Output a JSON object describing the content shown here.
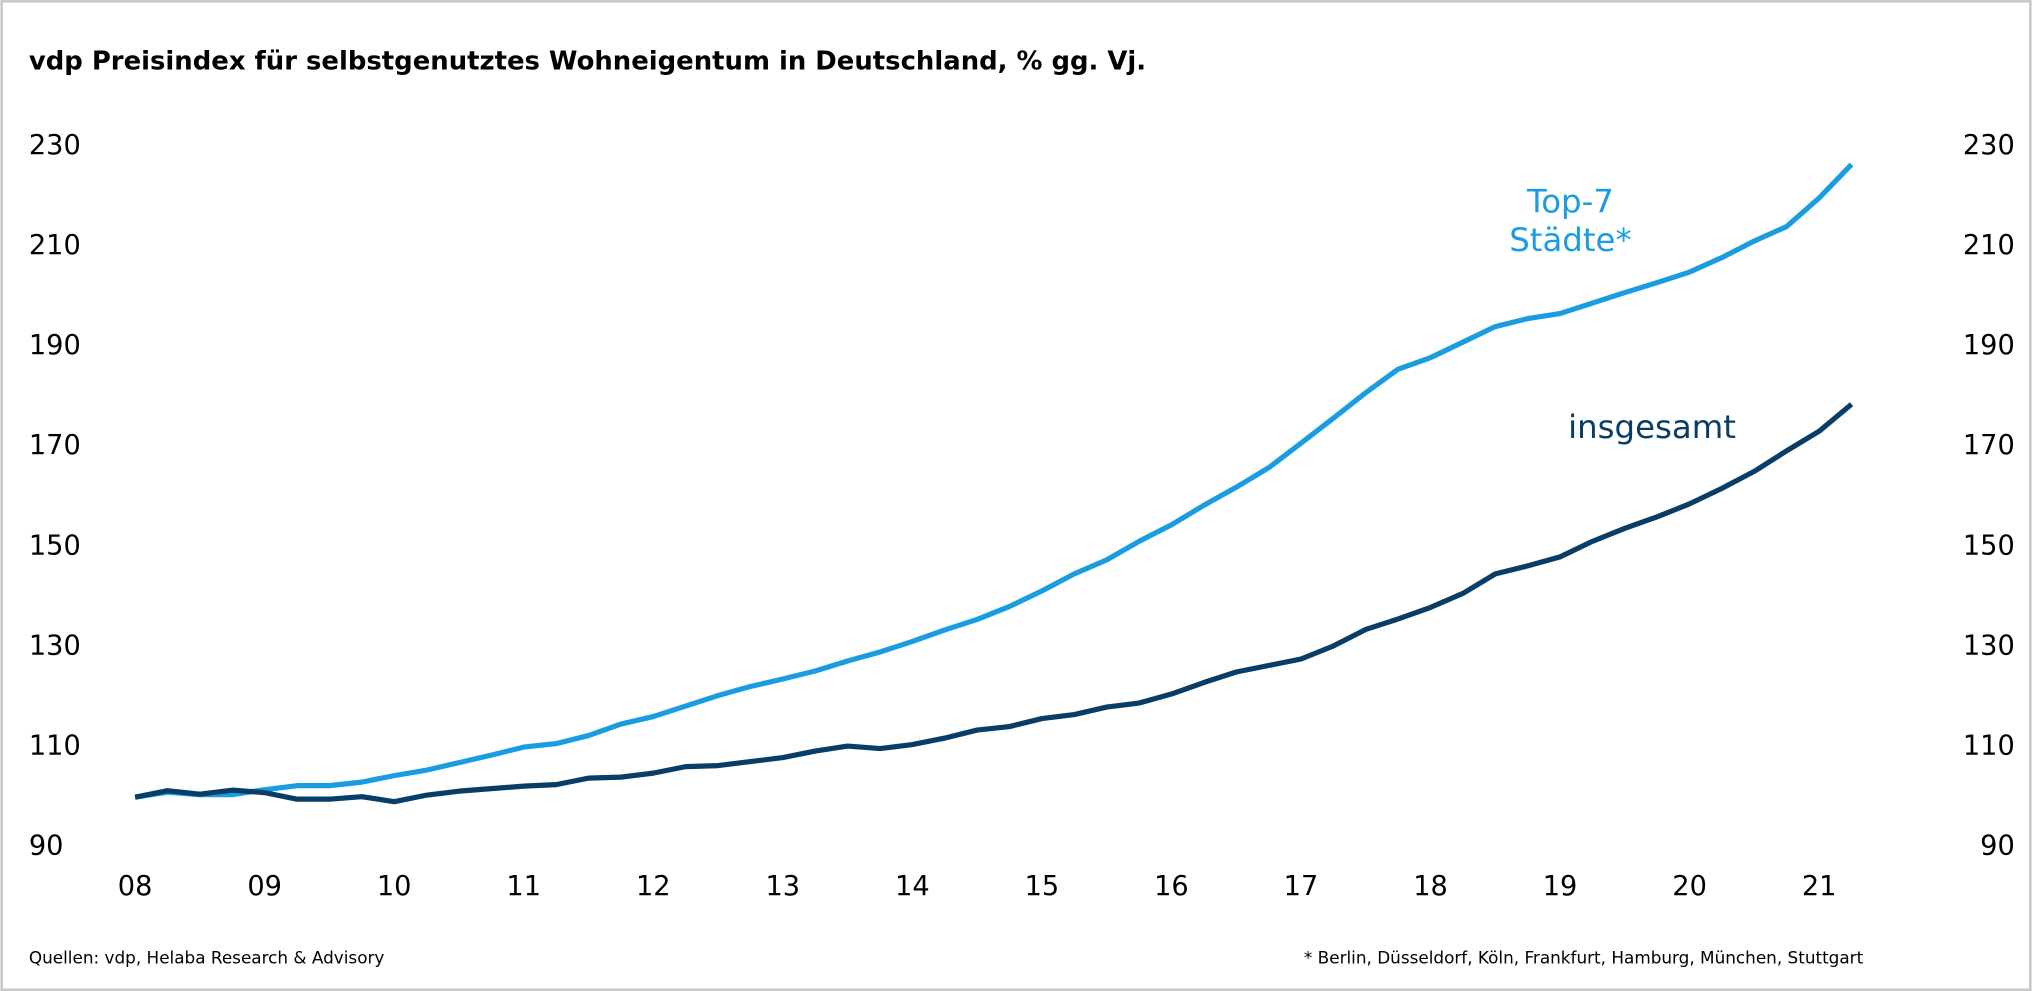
{
  "chart_data": {
    "type": "line",
    "title": "vdp Preisindex für selbstgenutztes Wohneigentum in Deutschland, % gg. Vj.",
    "source": "Quellen: vdp, Helaba Research & Advisory",
    "footnote": "* Berlin, Düsseldorf, Köln, Frankfurt, Hamburg, München, Stuttgart",
    "x": [
      8,
      8.25,
      8.5,
      8.75,
      9,
      9.25,
      9.5,
      9.75,
      10,
      10.25,
      10.5,
      10.75,
      11,
      11.25,
      11.5,
      11.75,
      12,
      12.25,
      12.5,
      12.75,
      13,
      13.25,
      13.5,
      13.75,
      14,
      14.25,
      14.5,
      14.75,
      15,
      15.25,
      15.5,
      15.75,
      16,
      16.25,
      16.5,
      16.75,
      17,
      17.25,
      17.5,
      17.75,
      18,
      18.25,
      18.5,
      18.75,
      19,
      19.25,
      19.5,
      19.75,
      20,
      20.25,
      20.5,
      20.75,
      21,
      21.25
    ],
    "series": [
      {
        "name": "Top-7 Städte*",
        "color": "#1a9de0",
        "values": [
          100,
          101,
          100.5,
          100.5,
          101.5,
          102.3,
          102.3,
          103,
          104.3,
          105.4,
          106.9,
          108.4,
          110,
          110.7,
          112.3,
          114.6,
          116.1,
          118.2,
          120.3,
          122.1,
          123.6,
          125.2,
          127.2,
          129,
          131.1,
          133.4,
          135.5,
          138.1,
          141.2,
          144.6,
          147.4,
          151.1,
          154.4,
          158.3,
          161.9,
          165.8,
          170.7,
          175.7,
          180.8,
          185.5,
          187.8,
          190.9,
          194,
          195.6,
          196.6,
          198.7,
          200.8,
          202.8,
          204.9,
          207.8,
          211.1,
          214,
          219.7,
          226.4
        ]
      },
      {
        "name": "insgesamt",
        "color": "#073d66",
        "values": [
          100,
          101.3,
          100.6,
          101.4,
          100.9,
          99.6,
          99.6,
          100.1,
          99.1,
          100.4,
          101.2,
          101.7,
          102.2,
          102.5,
          103.8,
          104,
          104.8,
          106.1,
          106.3,
          107.1,
          107.9,
          109.2,
          110.2,
          109.7,
          110.5,
          111.8,
          113.4,
          114.1,
          115.7,
          116.5,
          118,
          118.8,
          120.6,
          122.9,
          125,
          126.3,
          127.6,
          130.2,
          133.5,
          135.6,
          137.9,
          140.7,
          144.6,
          146.2,
          148,
          151.1,
          153.7,
          156,
          158.6,
          161.7,
          165.1,
          169.2,
          173.1,
          178.5
        ]
      }
    ],
    "xlim": [
      8,
      21.25
    ],
    "xticks": [
      {
        "value": 8,
        "label": "08"
      },
      {
        "value": 9,
        "label": "09"
      },
      10,
      11,
      12,
      13,
      14,
      15,
      16,
      17,
      18,
      19,
      20,
      21
    ],
    "ylim": [
      90,
      230
    ],
    "yticks": [
      90,
      110,
      130,
      150,
      170,
      190,
      210,
      230
    ],
    "y2lim": [
      90,
      230
    ],
    "y2ticks": [
      90,
      110,
      130,
      150,
      170,
      190,
      210,
      230
    ],
    "grid": false
  }
}
